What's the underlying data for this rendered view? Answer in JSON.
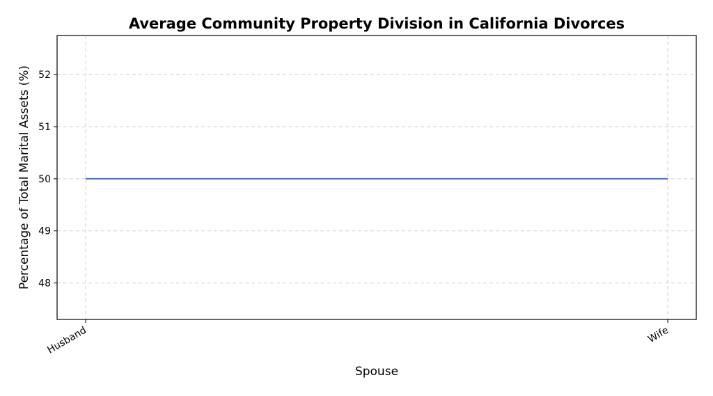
{
  "chart_data": {
    "type": "line",
    "title": "Average Community Property Division in California Divorces",
    "xlabel": "Spouse",
    "ylabel": "Percentage of Total Marital Assets (%)",
    "categories": [
      "Husband",
      "Wife"
    ],
    "series": [
      {
        "values": [
          50,
          50
        ],
        "color": "#4472c4"
      }
    ],
    "yticks": [
      48,
      49,
      50,
      51,
      52
    ],
    "ylim": [
      47.3,
      52.75
    ],
    "grid": true,
    "legend": false
  }
}
